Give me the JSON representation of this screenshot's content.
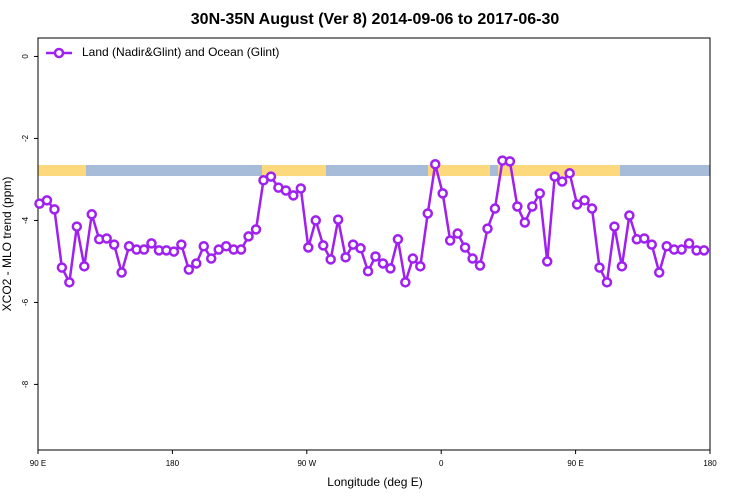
{
  "chart_data": {
    "type": "line",
    "title": "30N-35N August (Ver 8)   2014-09-06 to 2017-06-30",
    "x_label": "Longitude (deg E)",
    "y_label": "XCO2 - MLO trend (ppm)",
    "xlim": [
      90,
      540
    ],
    "ylim": [
      -9.6,
      0.45
    ],
    "xticks": [
      {
        "value": 90,
        "label": "90 E"
      },
      180,
      {
        "value": 270,
        "label": "90 W"
      },
      {
        "value": 360,
        "label": "0"
      },
      {
        "value": 450,
        "label": "90 E"
      },
      {
        "value": 540,
        "label": "180"
      }
    ],
    "yticks": [
      0,
      -2,
      -4,
      -6,
      -8
    ],
    "legend": "top-left",
    "series": [
      {
        "name": "Land (Nadir&Glint) and Ocean (Glint)",
        "color": "#a020f0",
        "x": [
          91,
          96,
          101,
          106,
          111,
          116,
          121,
          126,
          131,
          136,
          141,
          146,
          151,
          156,
          161,
          166,
          171,
          176,
          181,
          186,
          191,
          196,
          201,
          206,
          211,
          216,
          221,
          226,
          231,
          236,
          241,
          246,
          251,
          256,
          261,
          266,
          271,
          276,
          281,
          286,
          291,
          296,
          301,
          306,
          311,
          316,
          321,
          326,
          331,
          336,
          341,
          346,
          351,
          356,
          361,
          366,
          371,
          376,
          381,
          386,
          391,
          396,
          401,
          406,
          411,
          416,
          421,
          426,
          431,
          436,
          441,
          446,
          451,
          456,
          461,
          466,
          471,
          476,
          481,
          486,
          491,
          496,
          501,
          506,
          511,
          516,
          521,
          526,
          531,
          536
        ],
        "values": [
          -3.59,
          -3.51,
          -3.73,
          -5.15,
          -5.51,
          -4.15,
          -5.12,
          -3.85,
          -4.46,
          -4.44,
          -4.59,
          -5.27,
          -4.63,
          -4.71,
          -4.71,
          -4.56,
          -4.73,
          -4.73,
          -4.76,
          -4.59,
          -5.2,
          -5.05,
          -4.63,
          -4.93,
          -4.71,
          -4.63,
          -4.71,
          -4.71,
          -4.39,
          -4.22,
          -3.02,
          -2.93,
          -3.2,
          -3.27,
          -3.39,
          -3.22,
          -4.66,
          -4.0,
          -4.61,
          -4.95,
          -3.98,
          -4.9,
          -4.59,
          -4.68,
          -5.24,
          -4.88,
          -5.05,
          -5.17,
          -4.46,
          -5.51,
          -4.93,
          -5.12,
          -3.83,
          -2.63,
          -3.34,
          -4.49,
          -4.32,
          -4.66,
          -4.93,
          -5.1,
          -4.2,
          -3.71,
          -2.54,
          -2.56,
          -3.66,
          -4.05,
          -3.66,
          -3.34,
          -5.0,
          -2.93,
          -3.05,
          -2.85,
          -3.61,
          -3.51,
          -3.71,
          -5.15,
          -5.51,
          -4.15,
          -5.12,
          -3.88,
          -4.46,
          -4.44,
          -4.59,
          -5.27,
          -4.63,
          -4.71,
          -4.71,
          -4.56,
          -4.73,
          -4.73
        ]
      }
    ]
  }
}
